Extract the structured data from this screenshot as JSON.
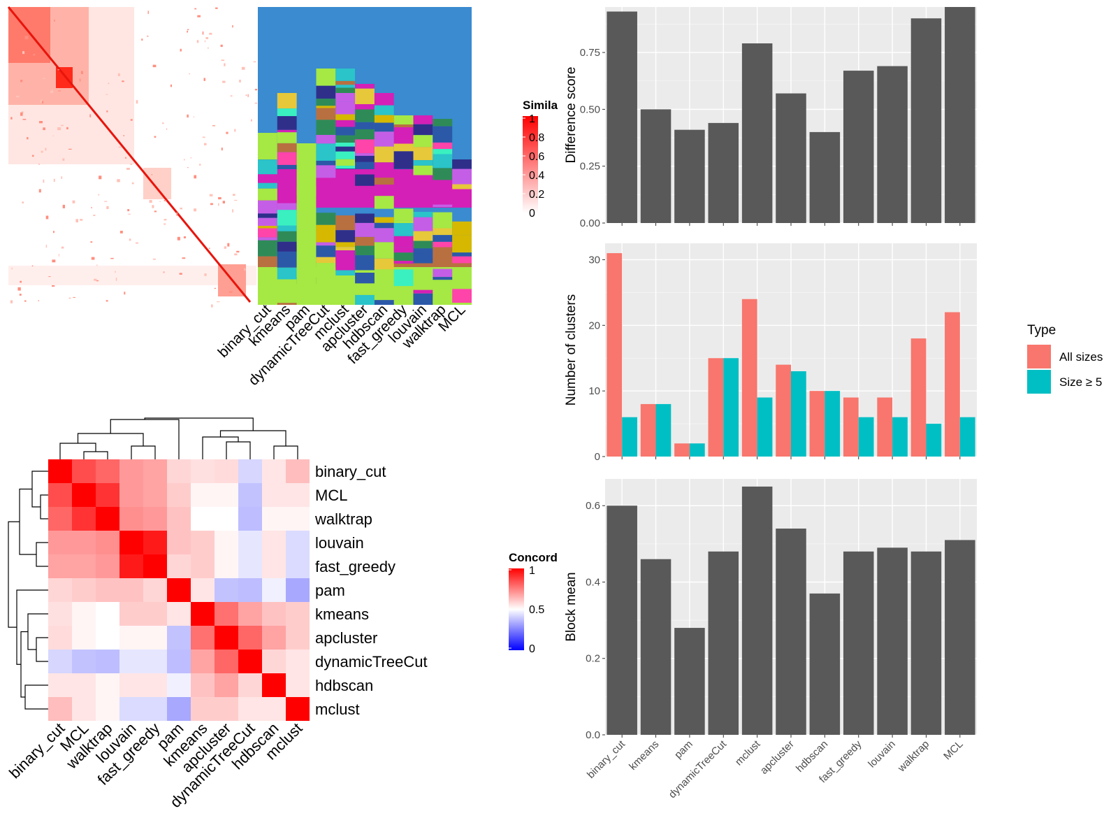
{
  "methods": [
    "binary_cut",
    "kmeans",
    "pam",
    "dynamicTreeCut",
    "mclust",
    "apcluster",
    "hdbscan",
    "fast_greedy",
    "louvain",
    "walktrap",
    "MCL"
  ],
  "similarity_panel": {
    "legend_title": "Simila",
    "legend_ticks": [
      "1",
      "0.8",
      "0.6",
      "0.4",
      "0.2",
      "0"
    ]
  },
  "concordance_panel": {
    "legend_title": "Concord",
    "legend_ticks": [
      "1",
      "0.5",
      "0"
    ],
    "order": [
      "binary_cut",
      "MCL",
      "walktrap",
      "louvain",
      "fast_greedy",
      "pam",
      "kmeans",
      "apcluster",
      "dynamicTreeCut",
      "hdbscan",
      "mclust"
    ]
  },
  "chart_data": [
    {
      "type": "heatmap",
      "title": "",
      "legend_title": "Concord",
      "rows": [
        "binary_cut",
        "MCL",
        "walktrap",
        "louvain",
        "fast_greedy",
        "pam",
        "kmeans",
        "apcluster",
        "dynamicTreeCut",
        "hdbscan",
        "mclust"
      ],
      "columns": [
        "binary_cut",
        "MCL",
        "walktrap",
        "louvain",
        "fast_greedy",
        "pam",
        "kmeans",
        "apcluster",
        "dynamicTreeCut",
        "hdbscan",
        "mclust"
      ],
      "values": [
        [
          1.0,
          0.85,
          0.8,
          0.7,
          0.68,
          0.58,
          0.56,
          0.57,
          0.42,
          0.55,
          0.63
        ],
        [
          0.85,
          1.0,
          0.9,
          0.7,
          0.68,
          0.6,
          0.52,
          0.52,
          0.38,
          0.55,
          0.55
        ],
        [
          0.8,
          0.9,
          1.0,
          0.72,
          0.7,
          0.62,
          0.5,
          0.5,
          0.37,
          0.52,
          0.52
        ],
        [
          0.7,
          0.7,
          0.72,
          1.0,
          0.95,
          0.62,
          0.6,
          0.52,
          0.45,
          0.55,
          0.43
        ],
        [
          0.68,
          0.68,
          0.7,
          0.95,
          1.0,
          0.58,
          0.6,
          0.52,
          0.45,
          0.55,
          0.43
        ],
        [
          0.58,
          0.6,
          0.62,
          0.62,
          0.58,
          1.0,
          0.55,
          0.38,
          0.37,
          0.47,
          0.33
        ],
        [
          0.56,
          0.52,
          0.5,
          0.6,
          0.6,
          0.55,
          1.0,
          0.78,
          0.68,
          0.62,
          0.6
        ],
        [
          0.57,
          0.52,
          0.5,
          0.52,
          0.52,
          0.38,
          0.78,
          1.0,
          0.8,
          0.68,
          0.6
        ],
        [
          0.42,
          0.38,
          0.37,
          0.45,
          0.45,
          0.37,
          0.68,
          0.8,
          1.0,
          0.58,
          0.55
        ],
        [
          0.55,
          0.55,
          0.52,
          0.55,
          0.55,
          0.47,
          0.62,
          0.68,
          0.58,
          1.0,
          0.55
        ],
        [
          0.63,
          0.55,
          0.52,
          0.43,
          0.43,
          0.33,
          0.6,
          0.6,
          0.55,
          0.55,
          1.0
        ]
      ]
    },
    {
      "type": "bar",
      "title": "",
      "xlabel": "",
      "ylabel": "Difference score",
      "ylim": [
        0,
        0.95
      ],
      "yticks": [
        "0.00",
        "0.25",
        "0.50",
        "0.75"
      ],
      "categories": [
        "binary_cut",
        "kmeans",
        "pam",
        "dynamicTreeCut",
        "mclust",
        "apcluster",
        "hdbscan",
        "fast_greedy",
        "louvain",
        "walktrap",
        "MCL"
      ],
      "values": [
        0.93,
        0.5,
        0.41,
        0.44,
        0.79,
        0.57,
        0.4,
        0.67,
        0.69,
        0.9,
        0.95
      ],
      "color": "#595959"
    },
    {
      "type": "bar",
      "title": "",
      "xlabel": "",
      "ylabel": "Number of clusters",
      "ylim": [
        0,
        32.5
      ],
      "yticks": [
        "0",
        "10",
        "20",
        "30"
      ],
      "categories": [
        "binary_cut",
        "kmeans",
        "pam",
        "dynamicTreeCut",
        "mclust",
        "apcluster",
        "hdbscan",
        "fast_greedy",
        "louvain",
        "walktrap",
        "MCL"
      ],
      "legend_title": "Type",
      "series": [
        {
          "name": "All sizes",
          "color": "#F8766D",
          "values": [
            31,
            8,
            2,
            15,
            24,
            14,
            10,
            9,
            9,
            18,
            22
          ]
        },
        {
          "name": "Size ≥ 5",
          "color": "#00BFC4",
          "values": [
            6,
            8,
            2,
            15,
            9,
            13,
            10,
            6,
            6,
            5,
            6
          ]
        }
      ]
    },
    {
      "type": "bar",
      "title": "",
      "xlabel": "",
      "ylabel": "Block mean",
      "ylim": [
        0,
        0.67
      ],
      "yticks": [
        "0.0",
        "0.2",
        "0.4",
        "0.6"
      ],
      "categories": [
        "binary_cut",
        "kmeans",
        "pam",
        "dynamicTreeCut",
        "mclust",
        "apcluster",
        "hdbscan",
        "fast_greedy",
        "louvain",
        "walktrap",
        "MCL"
      ],
      "values": [
        0.6,
        0.46,
        0.28,
        0.48,
        0.65,
        0.54,
        0.37,
        0.48,
        0.49,
        0.48,
        0.51
      ],
      "color": "#595959"
    }
  ]
}
